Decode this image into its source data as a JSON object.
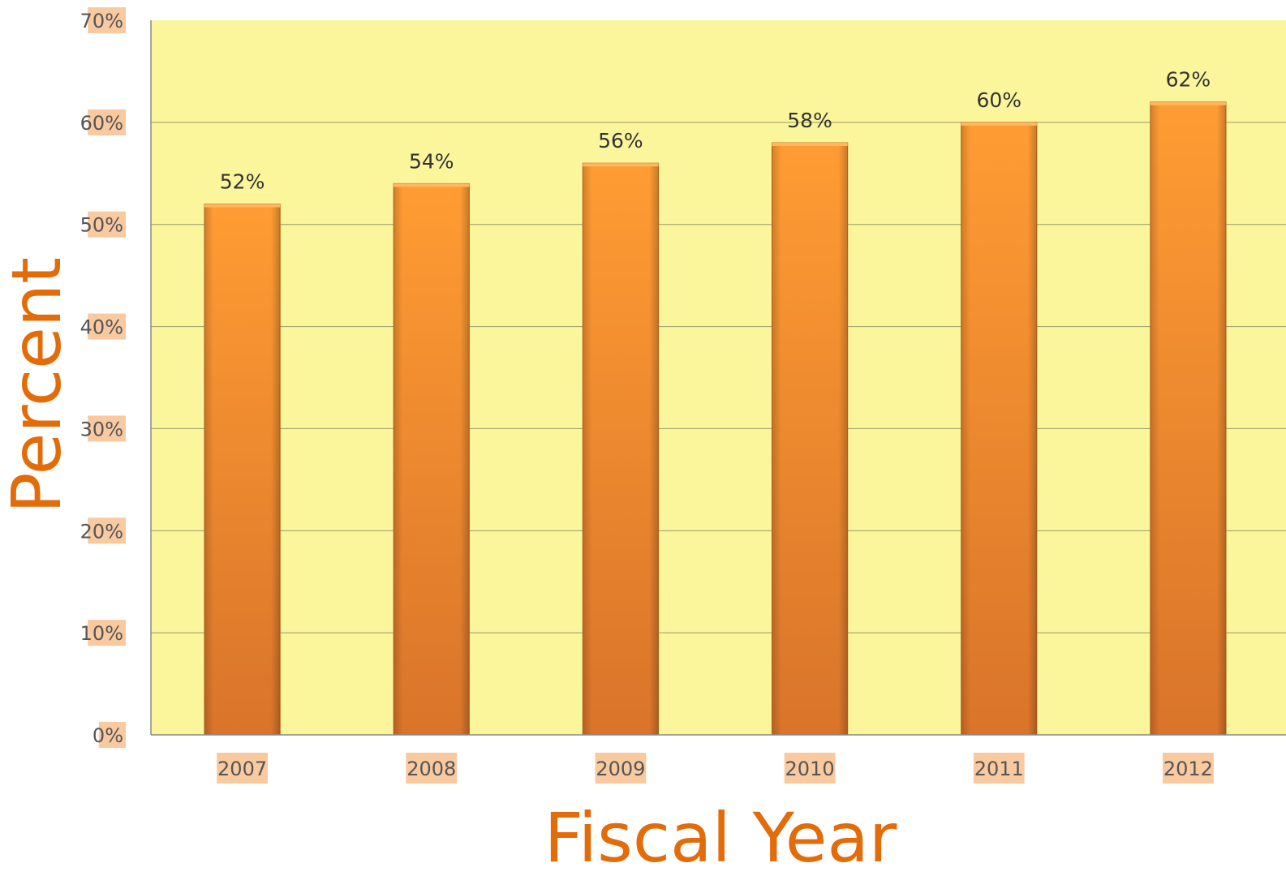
{
  "chart_data": {
    "type": "bar",
    "categories": [
      "2007",
      "2008",
      "2009",
      "2010",
      "2011",
      "2012"
    ],
    "values": [
      52,
      54,
      56,
      58,
      60,
      62
    ],
    "data_labels": [
      "52%",
      "54%",
      "56%",
      "58%",
      "60%",
      "62%"
    ],
    "title": "",
    "xlabel": "Fiscal Year",
    "ylabel": "Percent",
    "ylim": [
      0,
      70
    ],
    "yticks": [
      0,
      10,
      20,
      30,
      40,
      50,
      60,
      70
    ],
    "ytick_labels": [
      "0%",
      "10%",
      "20%",
      "30%",
      "40%",
      "50%",
      "60%",
      "70%"
    ],
    "grid": true,
    "legend": "none",
    "colors": {
      "plot_background": "#fbf59c",
      "bar_top": "#ff9c33",
      "bar_bottom": "#d9742a",
      "label_highlight": "#f9c9a0",
      "axis_title": "#e36c0a",
      "gridline": "#9a9a6a"
    }
  }
}
